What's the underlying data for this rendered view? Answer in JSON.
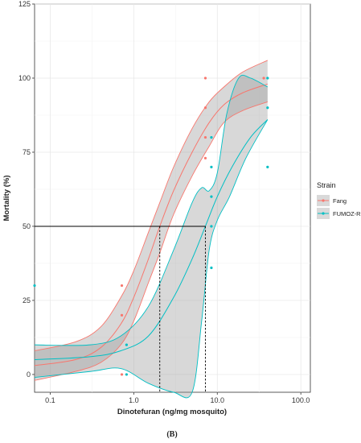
{
  "chart_data": {
    "type": "scatter",
    "xlabel": "Dinotefuran (ng/mg mosquito)",
    "ylabel": "Mortality (%)",
    "x_scale": "log",
    "xlim": [
      0.065,
      130
    ],
    "ylim": [
      -6,
      125
    ],
    "x_ticks": [
      0.1,
      1.0,
      10.0,
      100.0
    ],
    "x_tick_labels": [
      "0.1",
      "1.0",
      "10.0",
      "100.0"
    ],
    "y_ticks": [
      0,
      25,
      50,
      75,
      100,
      125
    ],
    "y_tick_labels": [
      "0",
      "25",
      "50",
      "75",
      "100",
      "125"
    ],
    "grid": true,
    "legend": {
      "title": "Strain",
      "placement": "right",
      "entries": [
        "Fang",
        "FUMOZ-R"
      ]
    },
    "panel_label": "(B)",
    "reference_lines": {
      "y50": 50,
      "lc50_x": [
        2.05,
        7.2
      ]
    },
    "series": [
      {
        "name": "Fang",
        "color": "#F8766D",
        "points": [
          {
            "x": 0.72,
            "y": 30
          },
          {
            "x": 0.72,
            "y": 20
          },
          {
            "x": 0.72,
            "y": 0
          },
          {
            "x": 7.2,
            "y": 100
          },
          {
            "x": 7.2,
            "y": 90
          },
          {
            "x": 7.2,
            "y": 80
          },
          {
            "x": 7.2,
            "y": 73
          },
          {
            "x": 36,
            "y": 100
          }
        ],
        "fit": [
          {
            "x": 0.065,
            "y": 3
          },
          {
            "x": 0.2,
            "y": 5
          },
          {
            "x": 0.4,
            "y": 9
          },
          {
            "x": 0.7,
            "y": 17
          },
          {
            "x": 1.0,
            "y": 26
          },
          {
            "x": 1.5,
            "y": 39
          },
          {
            "x": 2.05,
            "y": 50
          },
          {
            "x": 3.0,
            "y": 62
          },
          {
            "x": 5.0,
            "y": 75
          },
          {
            "x": 8.0,
            "y": 85
          },
          {
            "x": 12.0,
            "y": 91
          },
          {
            "x": 20.0,
            "y": 95
          },
          {
            "x": 40.0,
            "y": 98
          }
        ],
        "ci_upper": [
          {
            "x": 0.065,
            "y": 8
          },
          {
            "x": 0.2,
            "y": 11
          },
          {
            "x": 0.4,
            "y": 16
          },
          {
            "x": 0.7,
            "y": 26
          },
          {
            "x": 1.0,
            "y": 35
          },
          {
            "x": 1.5,
            "y": 48
          },
          {
            "x": 2.05,
            "y": 58
          },
          {
            "x": 3.0,
            "y": 70
          },
          {
            "x": 5.0,
            "y": 83
          },
          {
            "x": 8.0,
            "y": 92
          },
          {
            "x": 12.0,
            "y": 97
          },
          {
            "x": 20.0,
            "y": 102
          },
          {
            "x": 40.0,
            "y": 106
          }
        ],
        "ci_lower": [
          {
            "x": 0.065,
            "y": -2
          },
          {
            "x": 0.2,
            "y": 1
          },
          {
            "x": 0.4,
            "y": 4
          },
          {
            "x": 0.7,
            "y": 10
          },
          {
            "x": 1.0,
            "y": 18
          },
          {
            "x": 1.5,
            "y": 31
          },
          {
            "x": 2.05,
            "y": 41
          },
          {
            "x": 3.0,
            "y": 54
          },
          {
            "x": 5.0,
            "y": 67
          },
          {
            "x": 8.0,
            "y": 77
          },
          {
            "x": 12.0,
            "y": 85
          },
          {
            "x": 20.0,
            "y": 89
          },
          {
            "x": 40.0,
            "y": 92
          }
        ]
      },
      {
        "name": "FUMOZ-R",
        "color": "#00BFC4",
        "points": [
          {
            "x": 0.065,
            "y": 30
          },
          {
            "x": 0.82,
            "y": 10
          },
          {
            "x": 0.82,
            "y": 0
          },
          {
            "x": 8.5,
            "y": 80
          },
          {
            "x": 8.5,
            "y": 70
          },
          {
            "x": 8.5,
            "y": 60
          },
          {
            "x": 8.5,
            "y": 50
          },
          {
            "x": 8.5,
            "y": 36
          },
          {
            "x": 40,
            "y": 100
          },
          {
            "x": 40,
            "y": 90
          },
          {
            "x": 40,
            "y": 70
          }
        ],
        "fit": [
          {
            "x": 0.065,
            "y": 5
          },
          {
            "x": 0.3,
            "y": 6
          },
          {
            "x": 0.7,
            "y": 8
          },
          {
            "x": 1.5,
            "y": 13
          },
          {
            "x": 3.0,
            "y": 26
          },
          {
            "x": 5.0,
            "y": 39
          },
          {
            "x": 7.2,
            "y": 50
          },
          {
            "x": 10.0,
            "y": 60
          },
          {
            "x": 15.0,
            "y": 70
          },
          {
            "x": 25.0,
            "y": 80
          },
          {
            "x": 40.0,
            "y": 86
          }
        ],
        "ci_upper": [
          {
            "x": 0.065,
            "y": 10
          },
          {
            "x": 0.3,
            "y": 10
          },
          {
            "x": 0.7,
            "y": 13
          },
          {
            "x": 1.5,
            "y": 23
          },
          {
            "x": 3.0,
            "y": 42
          },
          {
            "x": 5.0,
            "y": 58
          },
          {
            "x": 6.5,
            "y": 63
          },
          {
            "x": 8.0,
            "y": 62
          },
          {
            "x": 10.0,
            "y": 68
          },
          {
            "x": 13.0,
            "y": 88
          },
          {
            "x": 18.0,
            "y": 100
          },
          {
            "x": 25.0,
            "y": 100
          },
          {
            "x": 40.0,
            "y": 97
          }
        ],
        "ci_lower": [
          {
            "x": 0.065,
            "y": -1
          },
          {
            "x": 0.3,
            "y": 1
          },
          {
            "x": 0.7,
            "y": 2
          },
          {
            "x": 1.5,
            "y": -3
          },
          {
            "x": 3.0,
            "y": -6
          },
          {
            "x": 5.0,
            "y": -6
          },
          {
            "x": 6.5,
            "y": 18
          },
          {
            "x": 8.0,
            "y": 42
          },
          {
            "x": 10.0,
            "y": 52
          },
          {
            "x": 14.0,
            "y": 60
          },
          {
            "x": 22.0,
            "y": 73
          },
          {
            "x": 40.0,
            "y": 86
          }
        ]
      }
    ]
  }
}
